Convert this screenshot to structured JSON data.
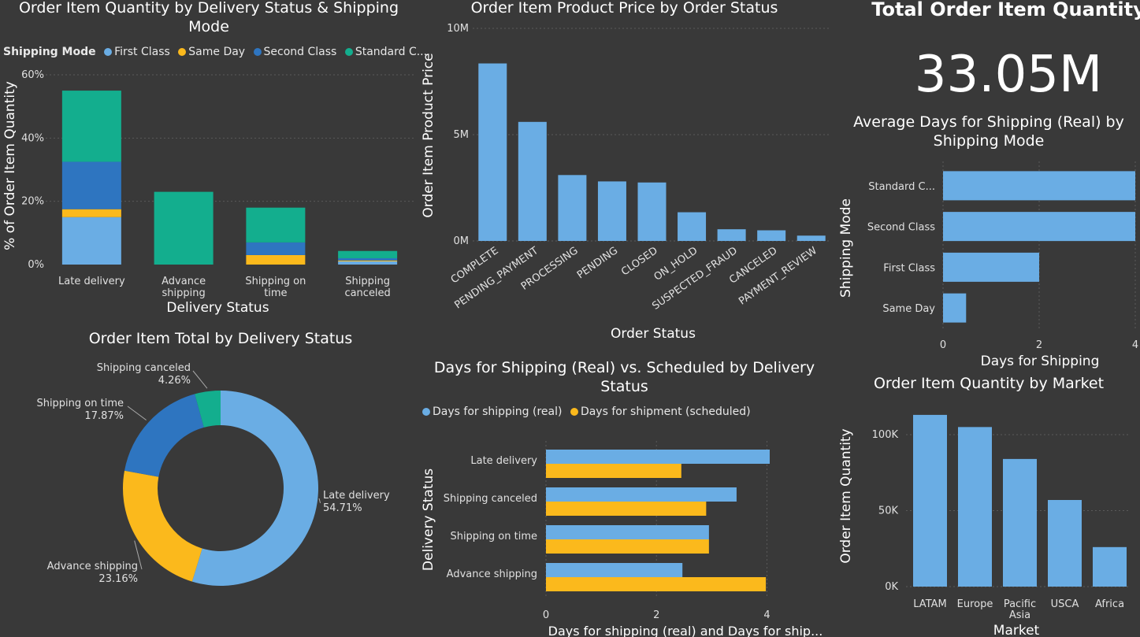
{
  "colors": {
    "bg": "#393939",
    "grid": "#5a5a5a",
    "axis": "#e0e0e0",
    "blue_light": "#6aade4",
    "yellow": "#fbb91c",
    "blue_dark": "#2e75c0",
    "teal": "#13ae8e"
  },
  "chart_data": [
    {
      "id": "c1",
      "type": "bar",
      "title": "Order Item Quantity by Delivery Status & Shipping Mode",
      "legend_title": "Shipping Mode",
      "xlabel": "Delivery Status",
      "ylabel": "% of Order Item Quantity",
      "categories": [
        "Late delivery",
        "Advance shipping",
        "Shipping on time",
        "Shipping canceled"
      ],
      "category_lines": [
        [
          "Late delivery"
        ],
        [
          "Advance",
          "shipping"
        ],
        [
          "Shipping on",
          "time"
        ],
        [
          "Shipping",
          "canceled"
        ]
      ],
      "series": [
        {
          "name": "First Class",
          "values": [
            15,
            0,
            0,
            1
          ]
        },
        {
          "name": "Same Day",
          "values": [
            2.5,
            0,
            3,
            0.3
          ]
        },
        {
          "name": "Second Class",
          "values": [
            15,
            0,
            4,
            0.7
          ]
        },
        {
          "name": "Standard C...",
          "values": [
            22.5,
            23,
            11,
            2.3
          ]
        }
      ],
      "yticks": [
        "0%",
        "20%",
        "40%",
        "60%"
      ],
      "ylim": [
        0,
        60
      ],
      "stacked": true,
      "legend": "top"
    },
    {
      "id": "c2",
      "type": "bar",
      "title": "Order Item Product Price by Order Status",
      "xlabel": "Order Status",
      "ylabel": "Order Item Product Price",
      "categories": [
        "COMPLETE",
        "PENDING_PAYMENT",
        "PROCESSING",
        "PENDING",
        "CLOSED",
        "ON_HOLD",
        "SUSPECTED_FRAUD",
        "CANCELED",
        "PAYMENT_REVIEW"
      ],
      "values": [
        8.35,
        5.6,
        3.1,
        2.8,
        2.75,
        1.35,
        0.55,
        0.5,
        0.25
      ],
      "yticks": [
        "0M",
        "5M",
        "10M"
      ],
      "ylim": [
        0,
        10
      ]
    },
    {
      "id": "c3",
      "type": "bar",
      "title": "Average Days for Shipping (Real) by Shipping Mode",
      "xlabel": "Days for Shipping",
      "ylabel": "Shipping Mode",
      "categories": [
        "Standard C...",
        "Second Class",
        "First Class",
        "Same Day"
      ],
      "values": [
        4.0,
        4.0,
        2.0,
        0.48
      ],
      "xticks": [
        "0",
        "2",
        "4"
      ],
      "xlim": [
        0,
        4
      ],
      "orientation": "horizontal"
    },
    {
      "id": "c4",
      "type": "pie",
      "title": "Order Item Total by Delivery Status",
      "labels": [
        "Late delivery",
        "Advance shipping",
        "Shipping on time",
        "Shipping canceled"
      ],
      "values": [
        54.71,
        23.16,
        17.87,
        4.26
      ],
      "value_labels": [
        "54.71%",
        "23.16%",
        "17.87%",
        "4.26%"
      ],
      "donut": true
    },
    {
      "id": "c5",
      "type": "bar",
      "title": "Days for Shipping (Real) vs. Scheduled by Delivery Status",
      "xlabel": "Days for shipping (real) and Days for ship...",
      "ylabel": "Delivery Status",
      "categories": [
        "Late delivery",
        "Shipping canceled",
        "Shipping on time",
        "Advance shipping"
      ],
      "series": [
        {
          "name": "Days for shipping (real)",
          "values": [
            4.05,
            3.45,
            2.95,
            2.47
          ]
        },
        {
          "name": "Days for shipment (scheduled)",
          "values": [
            2.45,
            2.9,
            2.95,
            3.98
          ]
        }
      ],
      "xticks": [
        "0",
        "2",
        "4"
      ],
      "xlim": [
        0,
        4.05
      ],
      "orientation": "horizontal",
      "legend": "top"
    },
    {
      "id": "c6",
      "type": "bar",
      "title": "Order Item Quantity by Market",
      "xlabel": "Market",
      "ylabel": "Order Item Quantity",
      "categories": [
        "LATAM",
        "Europe",
        "Pacific Asia",
        "USCA",
        "Africa"
      ],
      "category_lines": [
        [
          "LATAM"
        ],
        [
          "Europe"
        ],
        [
          "Pacific",
          "Asia"
        ],
        [
          "USCA"
        ],
        [
          "Africa"
        ]
      ],
      "values": [
        113000,
        105000,
        84000,
        57000,
        26000
      ],
      "yticks": [
        "0K",
        "50K",
        "100K"
      ],
      "ylim": [
        0,
        100000
      ]
    }
  ],
  "kpi": {
    "title": "Total Order Item Quantity",
    "value": "33.05M"
  }
}
